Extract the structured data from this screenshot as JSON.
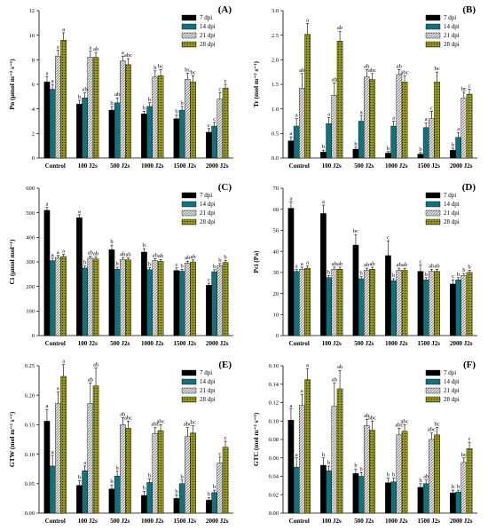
{
  "colors": {
    "s7": "#000000",
    "s14": "#16707a",
    "s21": "#b9b9b9",
    "s28": "#8a8a14"
  },
  "chart_data": [
    {
      "panel": "(A)",
      "type": "bar",
      "ylabel": "Pn (μmol m⁻² s⁻¹)",
      "ylim": [
        0,
        12
      ],
      "yticks": [
        "0",
        "2",
        "4",
        "6",
        "8",
        "10",
        "12"
      ],
      "categories": [
        "Control",
        "100 J2s",
        "500 J2s",
        "1000 J2s",
        "1500 J2s",
        "2000 J2s"
      ],
      "series": [
        {
          "name": "7 dpi",
          "values": [
            6.2,
            4.4,
            3.9,
            3.6,
            3.2,
            2.1
          ],
          "errors": [
            0.4,
            0.3,
            0.3,
            0.2,
            0.3,
            0.3
          ],
          "letters": [
            "a",
            "b",
            "b",
            "b",
            "b",
            "c"
          ]
        },
        {
          "name": "14 dpi",
          "values": [
            5.6,
            4.9,
            4.5,
            4.2,
            3.9,
            2.6
          ],
          "errors": [
            0.4,
            0.4,
            0.4,
            0.3,
            0.3,
            0.3
          ],
          "letters": [
            "a",
            "ab",
            "ab",
            "b",
            "b",
            "c"
          ]
        },
        {
          "name": "21 dpi",
          "values": [
            8.3,
            8.2,
            7.9,
            6.6,
            6.4,
            4.8
          ],
          "errors": [
            0.5,
            0.5,
            0.4,
            0.5,
            0.5,
            0.5
          ],
          "letters": [
            "a",
            "a",
            "a",
            "b",
            "bc",
            "c"
          ]
        },
        {
          "name": "28 dpi",
          "values": [
            9.6,
            8.2,
            7.6,
            6.7,
            6.2,
            5.7
          ],
          "errors": [
            0.6,
            0.4,
            0.5,
            0.5,
            0.5,
            0.3
          ],
          "letters": [
            "a",
            "ab",
            "abc",
            "bc",
            "bc",
            "c"
          ]
        }
      ]
    },
    {
      "panel": "(B)",
      "type": "bar",
      "ylabel": "Tr (mol m⁻² s⁻¹)",
      "ylim": [
        0,
        3.0
      ],
      "yticks": [
        "0.0",
        "0.5",
        "1.0",
        "1.5",
        "2.0",
        "2.5",
        "3.0"
      ],
      "categories": [
        "Control",
        "100 J2s",
        "500 J2s",
        "1000 J2s",
        "1500 J2s",
        "2000 J2s"
      ],
      "series": [
        {
          "name": "7 dpi",
          "values": [
            0.35,
            0.12,
            0.18,
            0.1,
            0.08,
            0.16
          ],
          "errors": [
            0.08,
            0.04,
            0.04,
            0.03,
            0.03,
            0.04
          ],
          "letters": [
            "a",
            "b",
            "b",
            "b",
            "b",
            "b"
          ]
        },
        {
          "name": "14 dpi",
          "values": [
            0.65,
            0.7,
            0.75,
            0.65,
            0.62,
            0.42
          ],
          "errors": [
            0.15,
            0.12,
            0.12,
            0.1,
            0.1,
            0.1
          ],
          "letters": [
            "a",
            "a",
            "a",
            "a",
            "a",
            "a"
          ]
        },
        {
          "name": "21 dpi",
          "values": [
            1.42,
            1.28,
            1.65,
            1.7,
            0.8,
            1.22
          ],
          "errors": [
            0.3,
            0.25,
            0.15,
            0.1,
            0.15,
            0.12
          ],
          "letters": [
            "ab",
            "ab",
            "ab",
            "ab",
            "c",
            "bc"
          ]
        },
        {
          "name": "28 dpi",
          "values": [
            2.52,
            2.38,
            1.6,
            1.55,
            1.55,
            1.3
          ],
          "errors": [
            0.22,
            0.2,
            0.12,
            0.12,
            0.2,
            0.1
          ],
          "letters": [
            "a",
            "ab",
            "abc",
            "abc",
            "bc",
            "c"
          ]
        }
      ]
    },
    {
      "panel": "(C)",
      "type": "bar",
      "ylabel": "Ci (μmol mol⁻¹)",
      "ylim": [
        0,
        600
      ],
      "yticks": [
        "0",
        "100",
        "200",
        "300",
        "400",
        "500",
        "600"
      ],
      "categories": [
        "Control",
        "100 J2s",
        "500 J2s",
        "1000 J2s",
        "1500 J2s",
        "2000 J2s"
      ],
      "series": [
        {
          "name": "7 dpi",
          "values": [
            510,
            480,
            350,
            340,
            265,
            205
          ],
          "errors": [
            12,
            12,
            18,
            14,
            10,
            8
          ],
          "letters": [
            "a",
            "a",
            "b",
            "b",
            "c",
            "c"
          ]
        },
        {
          "name": "14 dpi",
          "values": [
            305,
            275,
            270,
            268,
            262,
            260
          ],
          "errors": [
            10,
            8,
            8,
            8,
            8,
            8
          ],
          "letters": [
            "a",
            "b",
            "b",
            "b",
            "b",
            "b"
          ]
        },
        {
          "name": "21 dpi",
          "values": [
            318,
            315,
            310,
            305,
            295,
            285
          ],
          "errors": [
            8,
            8,
            8,
            8,
            8,
            8
          ],
          "letters": [
            "a",
            "ab",
            "ab",
            "ab",
            "ab",
            "b"
          ]
        },
        {
          "name": "28 dpi",
          "values": [
            322,
            312,
            308,
            302,
            300,
            298
          ],
          "errors": [
            8,
            8,
            8,
            8,
            8,
            8
          ],
          "letters": [
            "a",
            "ab",
            "ab",
            "ab",
            "ab",
            "b"
          ]
        }
      ]
    },
    {
      "panel": "(D)",
      "type": "bar",
      "ylabel": "Pci (Pa)",
      "ylim": [
        0,
        70
      ],
      "yticks": [
        "0",
        "10",
        "20",
        "30",
        "40",
        "50",
        "60",
        "70"
      ],
      "categories": [
        "Control",
        "100 J2s",
        "500 J2s",
        "1000 J2s",
        "1500 J2s",
        "2000 J2s"
      ],
      "series": [
        {
          "name": "7 dpi",
          "values": [
            60.5,
            58,
            43,
            38,
            30.5,
            24.5
          ],
          "errors": [
            3,
            4,
            5,
            7,
            3,
            2
          ],
          "letters": [
            "a",
            "a",
            "bc",
            "c",
            "c",
            "c"
          ]
        },
        {
          "name": "14 dpi",
          "values": [
            30.5,
            27.5,
            27,
            26,
            26.5,
            26.5
          ],
          "errors": [
            1,
            1,
            1,
            1,
            1,
            1
          ],
          "letters": [
            "a",
            "b",
            "b",
            "b",
            "b",
            "b"
          ]
        },
        {
          "name": "21 dpi",
          "values": [
            31.5,
            31.5,
            31,
            31,
            30.5,
            28.5
          ],
          "errors": [
            1,
            1,
            1,
            1,
            1,
            1
          ],
          "letters": [
            "a",
            "ab",
            "ab",
            "ab",
            "ab",
            "b"
          ]
        },
        {
          "name": "28 dpi",
          "values": [
            32,
            31.5,
            31.5,
            31,
            30.5,
            30
          ],
          "errors": [
            1,
            1,
            1,
            1,
            1,
            1
          ],
          "letters": [
            "a",
            "ab",
            "ab",
            "ab",
            "ab",
            "b"
          ]
        }
      ]
    },
    {
      "panel": "(E)",
      "type": "bar",
      "ylabel": "GTW (mol m⁻² s⁻¹)",
      "ylim": [
        0,
        0.25
      ],
      "yticks": [
        "0.00",
        "0.05",
        "0.10",
        "0.15",
        "0.20",
        "0.25"
      ],
      "categories": [
        "Control",
        "100 J2s",
        "500 J2s",
        "1000 J2s",
        "1500 J2s",
        "2000 J2s"
      ],
      "series": [
        {
          "name": "7 dpi",
          "values": [
            0.156,
            0.047,
            0.041,
            0.03,
            0.025,
            0.022
          ],
          "errors": [
            0.02,
            0.008,
            0.007,
            0.007,
            0.006,
            0.004
          ],
          "letters": [
            "a",
            "b",
            "b",
            "b",
            "b",
            "b"
          ]
        },
        {
          "name": "14 dpi",
          "values": [
            0.08,
            0.072,
            0.063,
            0.052,
            0.05,
            0.035
          ],
          "errors": [
            0.018,
            0.008,
            0.008,
            0.006,
            0.006,
            0.004
          ],
          "letters": [
            "a",
            "a",
            "b",
            "b",
            "b",
            "b"
          ]
        },
        {
          "name": "21 dpi",
          "values": [
            0.186,
            0.186,
            0.15,
            0.135,
            0.13,
            0.085
          ],
          "errors": [
            0.02,
            0.035,
            0.012,
            0.01,
            0.015,
            0.01
          ],
          "letters": [
            "a",
            "ab",
            "ab",
            "abc",
            "abc",
            "c"
          ]
        },
        {
          "name": "28 dpi",
          "values": [
            0.232,
            0.216,
            0.144,
            0.14,
            0.136,
            0.112
          ],
          "errors": [
            0.02,
            0.03,
            0.012,
            0.01,
            0.012,
            0.01
          ],
          "letters": [
            "a",
            "ab",
            "abc",
            "abc",
            "bc",
            "c"
          ]
        }
      ]
    },
    {
      "panel": "(F)",
      "type": "bar",
      "ylabel": "GTC (mol m⁻² s⁻¹)",
      "ylim": [
        0,
        0.16
      ],
      "yticks": [
        "0.00",
        "0.02",
        "0.04",
        "0.06",
        "0.08",
        "0.10",
        "0.12",
        "0.14",
        "0.16"
      ],
      "categories": [
        "Control",
        "100 J2s",
        "500 J2s",
        "1000 J2s",
        "1500 J2s",
        "2000 J2s"
      ],
      "series": [
        {
          "name": "7 dpi",
          "values": [
            0.101,
            0.052,
            0.043,
            0.033,
            0.028,
            0.022
          ],
          "errors": [
            0.012,
            0.008,
            0.005,
            0.005,
            0.004,
            0.003
          ],
          "letters": [
            "a",
            "b",
            "b",
            "b",
            "b",
            "b"
          ]
        },
        {
          "name": "14 dpi",
          "values": [
            0.05,
            0.046,
            0.04,
            0.034,
            0.032,
            0.023
          ],
          "errors": [
            0.01,
            0.005,
            0.004,
            0.004,
            0.004,
            0.002
          ],
          "letters": [
            "a",
            "b",
            "b",
            "b",
            "ab",
            "b"
          ]
        },
        {
          "name": "21 dpi",
          "values": [
            0.117,
            0.116,
            0.095,
            0.085,
            0.08,
            0.055
          ],
          "errors": [
            0.012,
            0.025,
            0.007,
            0.007,
            0.007,
            0.005
          ],
          "letters": [
            "a",
            "ab",
            "ab",
            "abc",
            "abc",
            "bc"
          ]
        },
        {
          "name": "28 dpi",
          "values": [
            0.145,
            0.135,
            0.09,
            0.089,
            0.085,
            0.07
          ],
          "errors": [
            0.012,
            0.02,
            0.01,
            0.007,
            0.008,
            0.007
          ],
          "letters": [
            "a",
            "ab",
            "abc",
            "abc",
            "bc",
            "c"
          ]
        }
      ]
    }
  ]
}
